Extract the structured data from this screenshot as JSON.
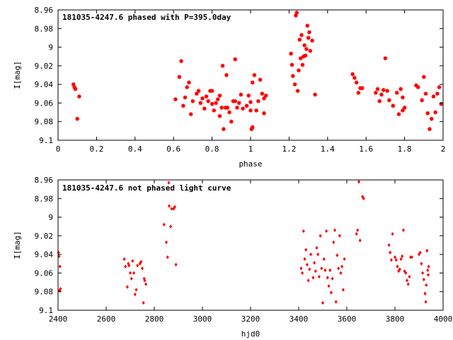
{
  "chart_data": [
    {
      "type": "scatter",
      "title": "181035-4247.6 phased with P=395.0day",
      "xlabel": "phase",
      "ylabel": "I[mag]",
      "xlim": [
        0,
        2
      ],
      "ylim": [
        9.1,
        8.96
      ],
      "y_inverted": true,
      "xticks": [
        "0",
        "0.2",
        "0.4",
        "0.6",
        "0.8",
        "1",
        "1.2",
        "1.4",
        "1.6",
        "1.8",
        "2"
      ],
      "yticks": [
        "8.96",
        "8.98",
        "9",
        "9.02",
        "9.04",
        "9.06",
        "9.08",
        "9.1"
      ],
      "grid": false,
      "marker_color": "#ff0000",
      "marker": "star",
      "points": [
        [
          0.08,
          9.04
        ],
        [
          0.085,
          9.043
        ],
        [
          0.09,
          9.045
        ],
        [
          0.1,
          9.077
        ],
        [
          0.11,
          9.053
        ],
        [
          0.61,
          9.056
        ],
        [
          0.63,
          9.032
        ],
        [
          0.64,
          9.015
        ],
        [
          0.65,
          9.063
        ],
        [
          0.66,
          9.054
        ],
        [
          0.67,
          9.043
        ],
        [
          0.68,
          9.038
        ],
        [
          0.69,
          9.072
        ],
        [
          0.7,
          9.058
        ],
        [
          0.72,
          9.05
        ],
        [
          0.73,
          9.047
        ],
        [
          0.74,
          9.06
        ],
        [
          0.75,
          9.055
        ],
        [
          0.76,
          9.066
        ],
        [
          0.77,
          9.053
        ],
        [
          0.78,
          9.058
        ],
        [
          0.79,
          9.047
        ],
        [
          0.8,
          9.047
        ],
        [
          0.8,
          9.061
        ],
        [
          0.81,
          9.068
        ],
        [
          0.82,
          9.06
        ],
        [
          0.83,
          9.056
        ],
        [
          0.84,
          9.052
        ],
        [
          0.84,
          9.074
        ],
        [
          0.85,
          9.065
        ],
        [
          0.855,
          9.02
        ],
        [
          0.86,
          9.088
        ],
        [
          0.87,
          9.065
        ],
        [
          0.875,
          9.03
        ],
        [
          0.88,
          9.065
        ],
        [
          0.89,
          9.07
        ],
        [
          0.9,
          9.08
        ],
        [
          0.91,
          9.058
        ],
        [
          0.92,
          9.058
        ],
        [
          0.92,
          9.013
        ],
        [
          0.93,
          9.065
        ],
        [
          0.94,
          9.06
        ],
        [
          0.95,
          9.051
        ],
        [
          0.96,
          9.066
        ],
        [
          0.98,
          9.063
        ],
        [
          0.99,
          9.052
        ],
        [
          1.0,
          9.059
        ],
        [
          1.0,
          9.068
        ],
        [
          1.005,
          9.088
        ],
        [
          1.01,
          9.086
        ],
        [
          1.01,
          9.038
        ],
        [
          1.02,
          9.03
        ],
        [
          1.03,
          9.068
        ],
        [
          1.04,
          9.058
        ],
        [
          1.05,
          9.035
        ],
        [
          1.06,
          9.05
        ],
        [
          1.07,
          9.055
        ],
        [
          1.07,
          9.071
        ],
        [
          1.08,
          9.052
        ],
        [
          1.21,
          9.007
        ],
        [
          1.215,
          9.019
        ],
        [
          1.22,
          9.031
        ],
        [
          1.23,
          9.04
        ],
        [
          1.235,
          8.966
        ],
        [
          1.24,
          8.963
        ],
        [
          1.245,
          9.047
        ],
        [
          1.25,
          9.025
        ],
        [
          1.255,
          8.992
        ],
        [
          1.26,
          9.012
        ],
        [
          1.265,
          8.987
        ],
        [
          1.27,
          9.019
        ],
        [
          1.275,
          9.01
        ],
        [
          1.28,
          8.998
        ],
        [
          1.285,
          9.009
        ],
        [
          1.29,
          9.002
        ],
        [
          1.295,
          8.977
        ],
        [
          1.3,
          8.99
        ],
        [
          1.305,
          8.984
        ],
        [
          1.31,
          9.004
        ],
        [
          1.32,
          8.993
        ],
        [
          1.335,
          9.051
        ],
        [
          1.53,
          9.029
        ],
        [
          1.54,
          9.033
        ],
        [
          1.55,
          9.038
        ],
        [
          1.56,
          9.049
        ],
        [
          1.57,
          9.044
        ],
        [
          1.58,
          9.044
        ],
        [
          1.65,
          9.049
        ],
        [
          1.66,
          9.045
        ],
        [
          1.67,
          9.058
        ],
        [
          1.68,
          9.051
        ],
        [
          1.69,
          9.046
        ],
        [
          1.7,
          9.012
        ],
        [
          1.71,
          9.047
        ],
        [
          1.72,
          9.057
        ],
        [
          1.74,
          9.063
        ],
        [
          1.76,
          9.049
        ],
        [
          1.77,
          9.072
        ],
        [
          1.78,
          9.045
        ],
        [
          1.79,
          9.068
        ],
        [
          1.79,
          9.054
        ],
        [
          1.8,
          9.065
        ],
        [
          1.86,
          9.041
        ],
        [
          1.87,
          9.043
        ],
        [
          1.89,
          9.057
        ],
        [
          1.9,
          9.032
        ],
        [
          1.91,
          9.05
        ],
        [
          1.92,
          9.071
        ],
        [
          1.93,
          9.088
        ],
        [
          1.94,
          9.077
        ],
        [
          1.95,
          9.053
        ],
        [
          1.96,
          9.07
        ],
        [
          1.97,
          9.05
        ],
        [
          1.98,
          9.043
        ],
        [
          1.99,
          9.061
        ]
      ]
    },
    {
      "type": "scatter",
      "title": "181035-4247.6 not phased light curve",
      "xlabel": "hjd0",
      "ylabel": "I[mag]",
      "xlim": [
        2400,
        4000
      ],
      "ylim": [
        9.1,
        8.96
      ],
      "y_inverted": true,
      "xticks": [
        "2400",
        "2600",
        "2800",
        "3000",
        "3200",
        "3400",
        "3600",
        "3800",
        "4000"
      ],
      "yticks": [
        "8.96",
        "8.98",
        "9",
        "9.02",
        "9.04",
        "9.06",
        "9.08",
        "9.1"
      ],
      "grid": false,
      "marker_color": "#ff0000",
      "marker": "diamond",
      "points": [
        [
          2402,
          9.038
        ],
        [
          2404,
          9.042
        ],
        [
          2406,
          9.079
        ],
        [
          2408,
          9.053
        ],
        [
          2410,
          9.077
        ],
        [
          2675,
          9.045
        ],
        [
          2680,
          9.053
        ],
        [
          2688,
          9.075
        ],
        [
          2692,
          9.05
        ],
        [
          2695,
          9.052
        ],
        [
          2700,
          9.06
        ],
        [
          2705,
          9.066
        ],
        [
          2710,
          9.047
        ],
        [
          2715,
          9.06
        ],
        [
          2720,
          9.083
        ],
        [
          2725,
          9.078
        ],
        [
          2730,
          9.052
        ],
        [
          2740,
          9.05
        ],
        [
          2745,
          9.048
        ],
        [
          2750,
          9.055
        ],
        [
          2755,
          9.092
        ],
        [
          2758,
          9.066
        ],
        [
          2760,
          9.068
        ],
        [
          2765,
          9.072
        ],
        [
          2840,
          9.008
        ],
        [
          2850,
          9.027
        ],
        [
          2855,
          9.043
        ],
        [
          2860,
          8.963
        ],
        [
          2862,
          8.988
        ],
        [
          2868,
          9.01
        ],
        [
          2872,
          8.991
        ],
        [
          2880,
          8.991
        ],
        [
          2885,
          8.989
        ],
        [
          2890,
          9.051
        ],
        [
          3410,
          9.055
        ],
        [
          3415,
          9.06
        ],
        [
          3420,
          9.015
        ],
        [
          3425,
          9.045
        ],
        [
          3430,
          9.035
        ],
        [
          3435,
          9.051
        ],
        [
          3440,
          9.068
        ],
        [
          3445,
          9.056
        ],
        [
          3450,
          9.04
        ],
        [
          3460,
          9.065
        ],
        [
          3465,
          9.049
        ],
        [
          3470,
          9.058
        ],
        [
          3475,
          9.033
        ],
        [
          3480,
          9.04
        ],
        [
          3485,
          9.064
        ],
        [
          3490,
          9.02
        ],
        [
          3495,
          9.055
        ],
        [
          3500,
          9.092
        ],
        [
          3505,
          9.045
        ],
        [
          3510,
          9.057
        ],
        [
          3515,
          9.015
        ],
        [
          3520,
          9.065
        ],
        [
          3525,
          9.074
        ],
        [
          3530,
          9.057
        ],
        [
          3535,
          9.081
        ],
        [
          3540,
          9.066
        ],
        [
          3545,
          9.027
        ],
        [
          3550,
          9.014
        ],
        [
          3555,
          9.091
        ],
        [
          3560,
          9.041
        ],
        [
          3565,
          9.055
        ],
        [
          3570,
          9.02
        ],
        [
          3575,
          9.06
        ],
        [
          3580,
          9.053
        ],
        [
          3585,
          9.078
        ],
        [
          3590,
          9.045
        ],
        [
          3640,
          9.018
        ],
        [
          3645,
          9.014
        ],
        [
          3650,
          8.962
        ],
        [
          3655,
          9.025
        ],
        [
          3665,
          8.978
        ],
        [
          3670,
          8.98
        ],
        [
          3775,
          9.03
        ],
        [
          3780,
          9.038
        ],
        [
          3785,
          9.046
        ],
        [
          3790,
          9.018
        ],
        [
          3800,
          9.043
        ],
        [
          3805,
          9.046
        ],
        [
          3810,
          9.053
        ],
        [
          3815,
          9.058
        ],
        [
          3820,
          9.056
        ],
        [
          3825,
          9.045
        ],
        [
          3830,
          9.042
        ],
        [
          3835,
          9.014
        ],
        [
          3840,
          9.058
        ],
        [
          3845,
          9.06
        ],
        [
          3850,
          9.068
        ],
        [
          3855,
          9.072
        ],
        [
          3860,
          9.064
        ],
        [
          3865,
          9.043
        ],
        [
          3870,
          9.043
        ],
        [
          3900,
          9.04
        ],
        [
          3905,
          9.038
        ],
        [
          3910,
          9.05
        ],
        [
          3915,
          9.06
        ],
        [
          3920,
          9.067
        ],
        [
          3925,
          9.082
        ],
        [
          3928,
          9.091
        ],
        [
          3930,
          9.073
        ],
        [
          3933,
          9.036
        ],
        [
          3936,
          9.057
        ],
        [
          3938,
          9.062
        ],
        [
          3940,
          9.053
        ]
      ]
    }
  ]
}
